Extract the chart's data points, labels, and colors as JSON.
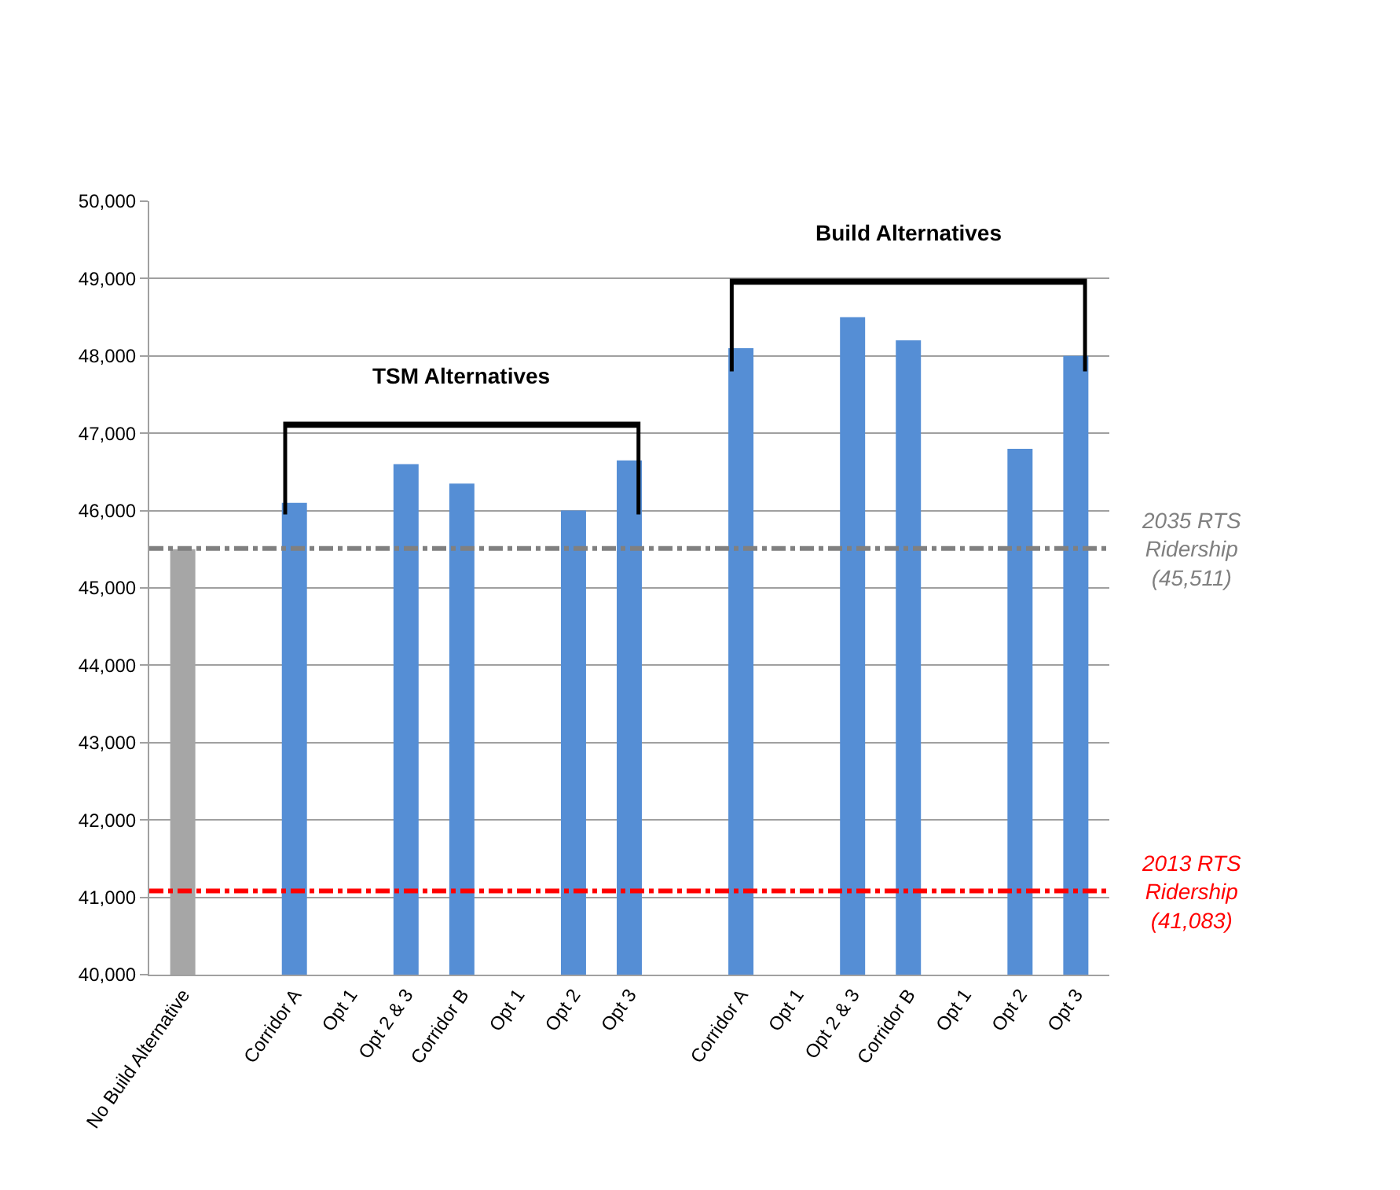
{
  "chart_data": {
    "type": "bar",
    "categories": [
      "No Build Alternative",
      null,
      "Corridor A",
      "Opt 1",
      "Opt 2 & 3",
      "Corridor B",
      "Opt 1",
      "Opt 2",
      "Opt 3",
      null,
      "Corridor A",
      "Opt 1",
      "Opt 2 & 3",
      "Corridor B",
      "Opt 1",
      "Opt 2",
      "Opt 3"
    ],
    "values": [
      45500,
      null,
      46100,
      40000,
      46600,
      46350,
      40000,
      46000,
      46650,
      null,
      48100,
      40000,
      48500,
      48200,
      40000,
      46800,
      48000
    ],
    "colors": [
      "#a6a6a6",
      "#558ed5",
      "#558ed5",
      "#558ed5",
      "#558ed5",
      "#558ed5",
      "#558ed5",
      "#558ed5",
      "#558ed5",
      "#558ed5",
      "#558ed5",
      "#558ed5",
      "#558ed5",
      "#558ed5",
      "#558ed5",
      "#558ed5",
      "#558ed5"
    ],
    "ylim": [
      40000,
      50000
    ],
    "yticks": [
      {
        "value": 40000,
        "label": "40,000"
      },
      {
        "value": 41000,
        "label": "41,000"
      },
      {
        "value": 42000,
        "label": "42,000"
      },
      {
        "value": 43000,
        "label": "43,000"
      },
      {
        "value": 44000,
        "label": "44,000"
      },
      {
        "value": 45000,
        "label": "45,000"
      },
      {
        "value": 46000,
        "label": "46,000"
      },
      {
        "value": 47000,
        "label": "47,000"
      },
      {
        "value": 48000,
        "label": "48,000"
      },
      {
        "value": 49000,
        "label": "49,000"
      },
      {
        "value": 50000,
        "label": "50,000"
      }
    ],
    "grid": "y",
    "ref_lines": [
      {
        "axis": "y",
        "value": 45511,
        "label": "2035 RTS\nRidership\n(45,511)",
        "color": "#808080",
        "line_style": "dashdot"
      },
      {
        "axis": "y",
        "value": 41083,
        "label": "2013 RTS\nRidership\n(41,083)",
        "color": "#ff0000",
        "line_style": "dashdot"
      }
    ],
    "annotations": [
      "TSM Alternatives",
      "Build Alternatives"
    ]
  }
}
